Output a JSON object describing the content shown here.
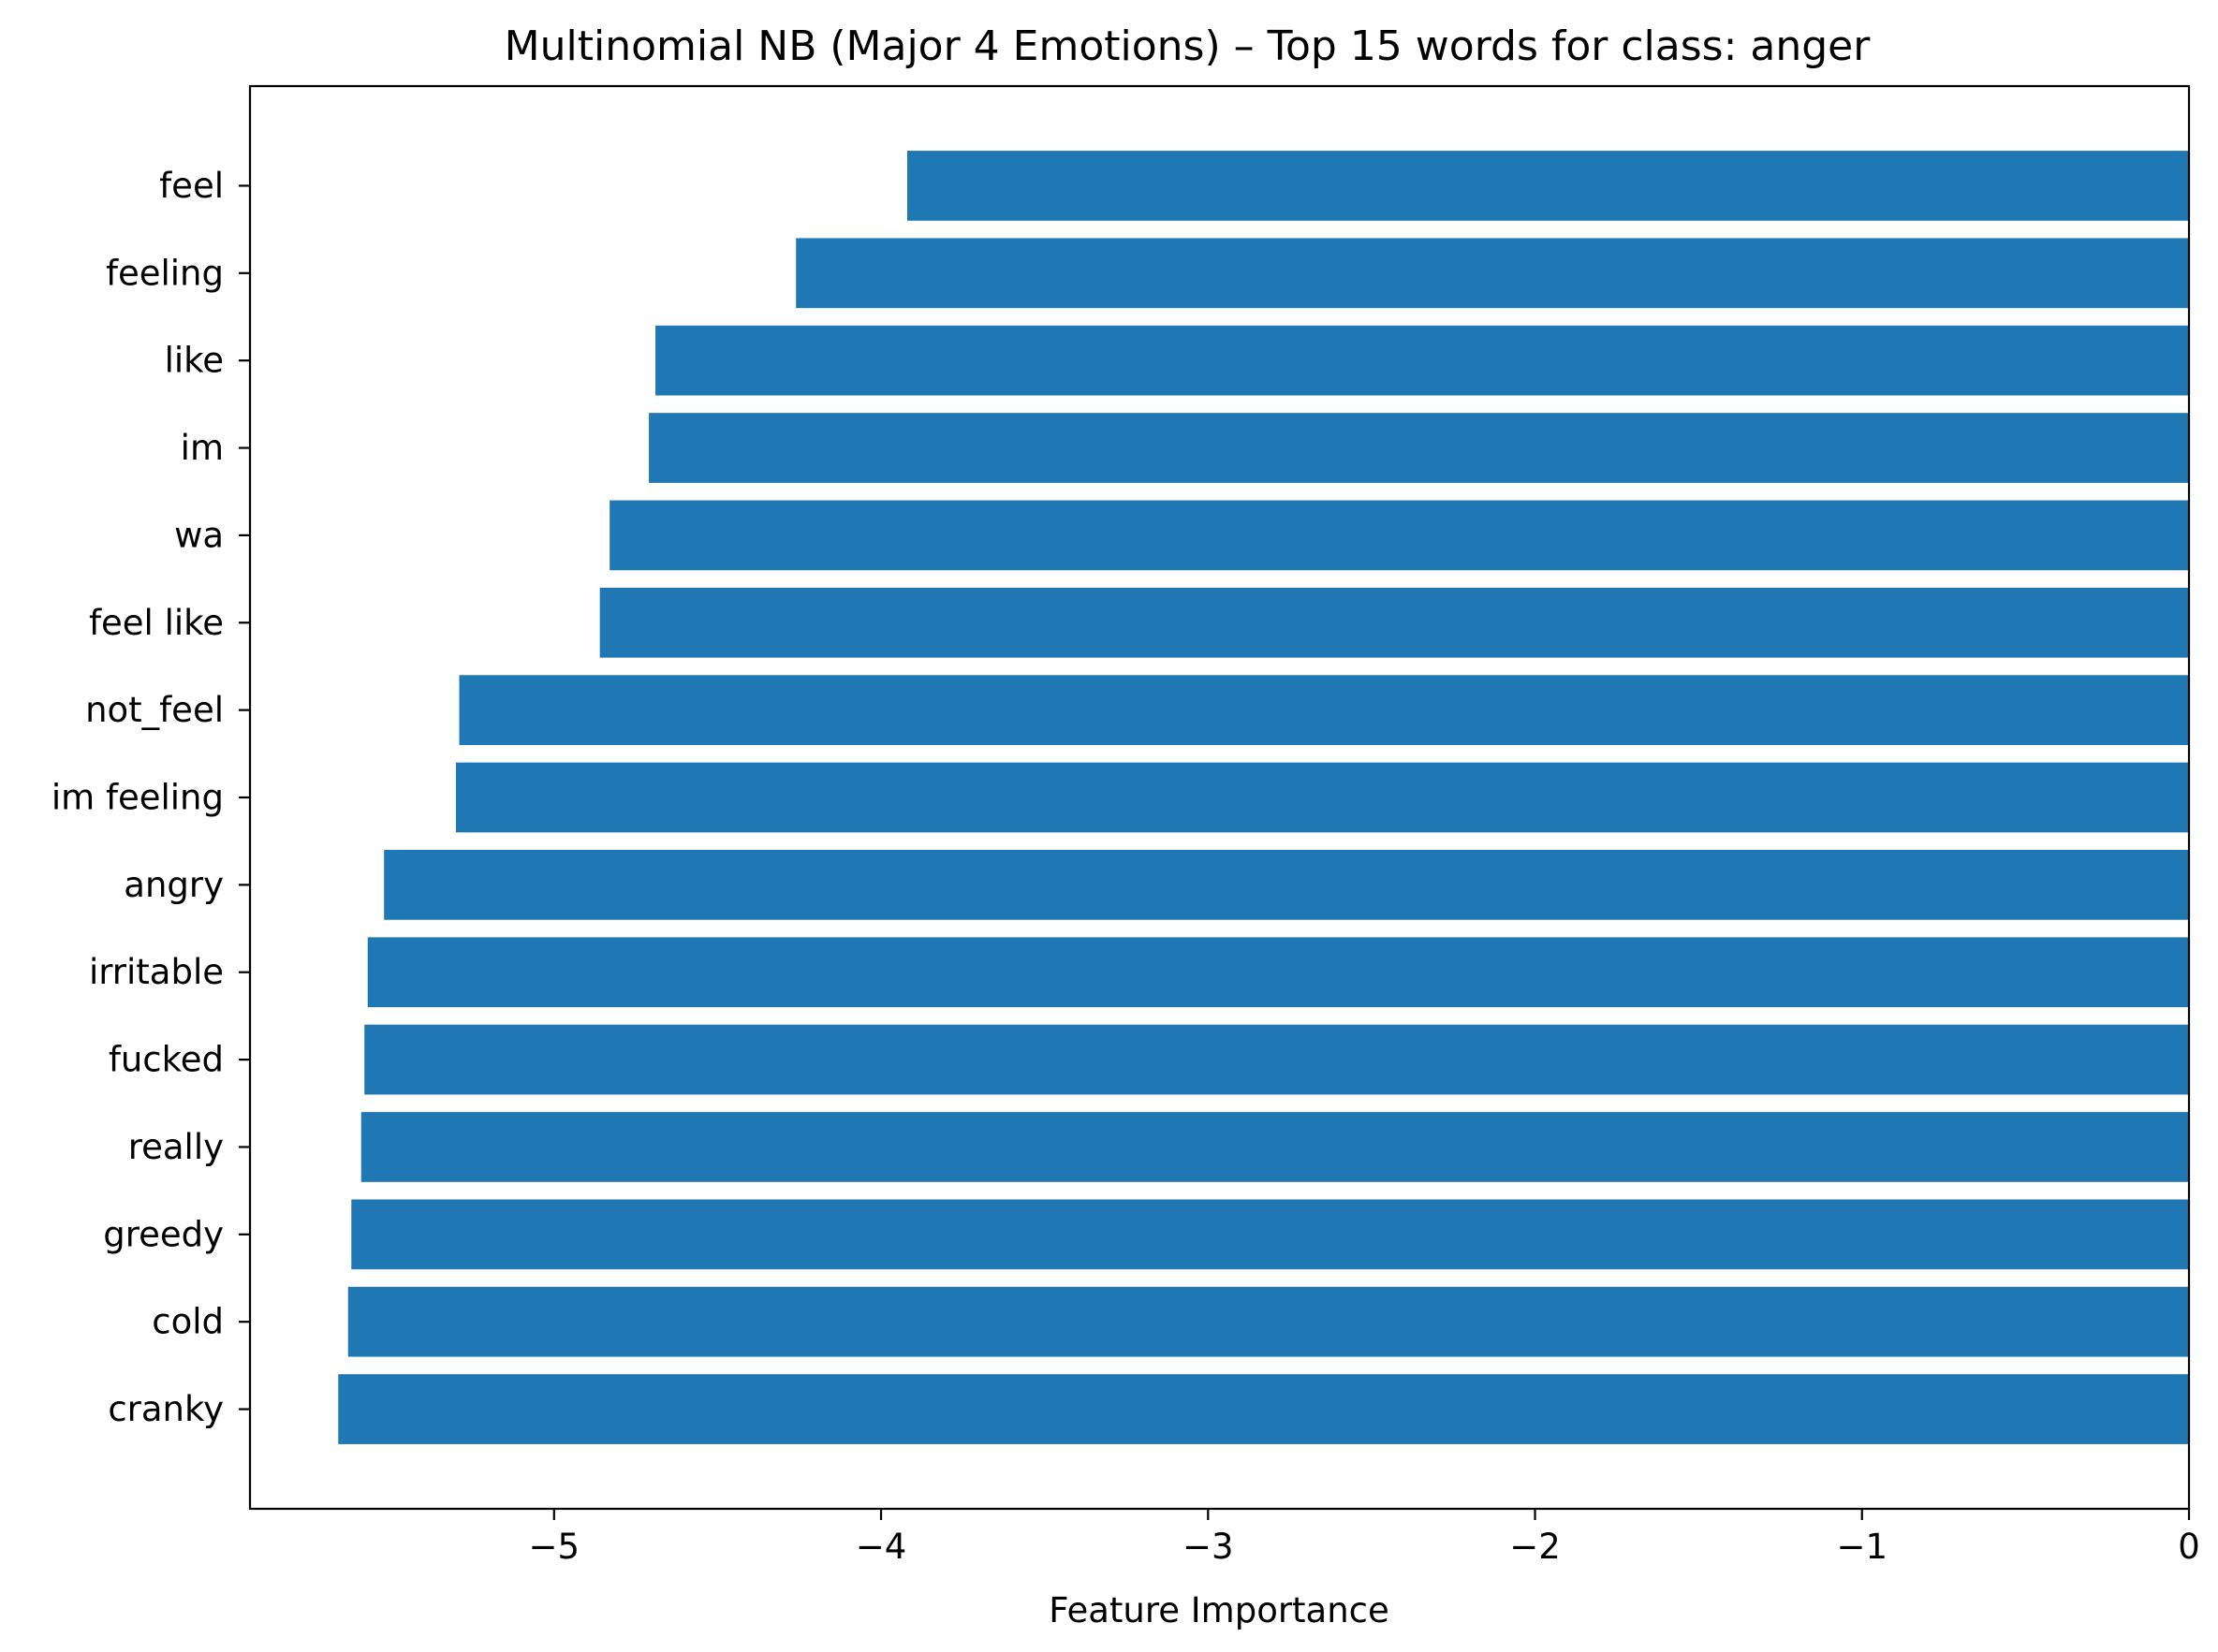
{
  "chart_data": {
    "type": "bar",
    "orientation": "horizontal",
    "title": "Multinomial NB (Major 4 Emotions) – Top 15 words for class: anger",
    "xlabel": "Feature Importance",
    "ylabel": "",
    "categories": [
      "feel",
      "feeling",
      "like",
      "im",
      "wa",
      "feel like",
      "not_feel",
      "im feeling",
      "angry",
      "irritable",
      "fucked",
      "really",
      "greedy",
      "cold",
      "cranky"
    ],
    "values": [
      -3.92,
      -4.26,
      -4.69,
      -4.71,
      -4.83,
      -4.86,
      -5.29,
      -5.3,
      -5.52,
      -5.57,
      -5.58,
      -5.59,
      -5.62,
      -5.63,
      -5.66
    ],
    "xlim": [
      -5.93,
      0
    ],
    "xticks": [
      -5,
      -4,
      -3,
      -2,
      -1,
      0
    ],
    "xtick_labels": [
      "−5",
      "−4",
      "−3",
      "−2",
      "−1",
      "0"
    ],
    "bar_color": "#1f77b4",
    "grid": false,
    "legend": "none"
  }
}
